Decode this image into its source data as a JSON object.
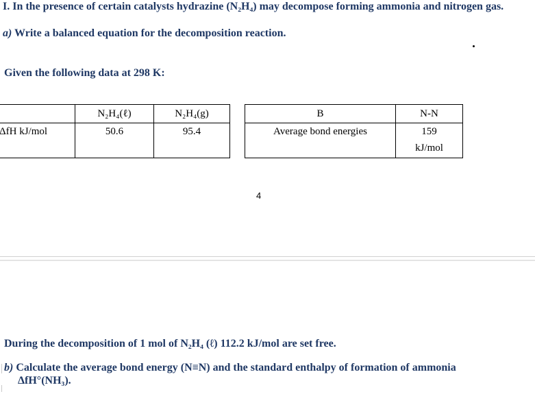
{
  "question": {
    "intro": "I.  In the presence of certain catalysts hydrazine (N₂H₄) may decompose forming ammonia and nitrogen gas.",
    "part_a_label": "a)",
    "part_a_text": " Write a balanced equation for the decomposition reaction.",
    "given": "Given the following data at 298 K:"
  },
  "table1": {
    "header": [
      "",
      "N₂H₄(ℓ)",
      "N₂H₄(g)"
    ],
    "row": [
      "ΔfH  kJ/mol",
      "50.6",
      "95.4"
    ]
  },
  "table2": {
    "header": [
      "B",
      "N-N"
    ],
    "row_label": "Average bond energies",
    "row_value_line1": "159",
    "row_value_line2": "kJ/mol"
  },
  "page_number": "4",
  "decomposition_text": "During the decomposition of 1 mol of N₂H₄ (ℓ) 112.2 kJ/mol are set free.",
  "part_b": {
    "label": "b)",
    "text": " Calculate the average bond energy (N≡N) and the standard enthalpy of formation of ammonia",
    "line2": "ΔfH°(NH₃)."
  }
}
